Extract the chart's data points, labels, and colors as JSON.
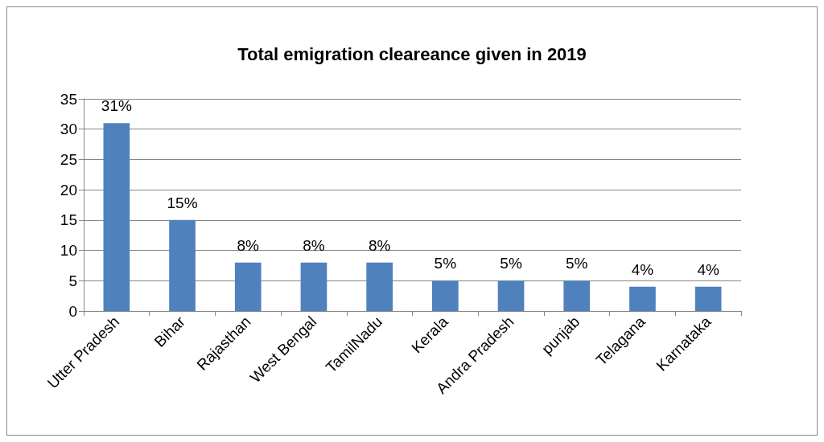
{
  "chart_data": {
    "type": "bar",
    "title": "Total emigration cleareance given in 2019",
    "categories": [
      "Utter Pradesh",
      "Bihar",
      "Rajasthan",
      "West Bengal",
      "TamilNadu",
      "Kerala",
      "Andra Pradesh",
      "punjab",
      "Telagana",
      "Karnataka"
    ],
    "values": [
      31,
      15,
      8,
      8,
      8,
      5,
      5,
      5,
      4,
      4
    ],
    "value_labels": [
      "31%",
      "15%",
      "8%",
      "8%",
      "8%",
      "5%",
      "5%",
      "5%",
      "4%",
      "4%"
    ],
    "color": "#4f81bd",
    "ylim": [
      0,
      35
    ],
    "yticks": [
      0,
      5,
      10,
      15,
      20,
      25,
      30,
      35
    ],
    "grid": "y"
  }
}
